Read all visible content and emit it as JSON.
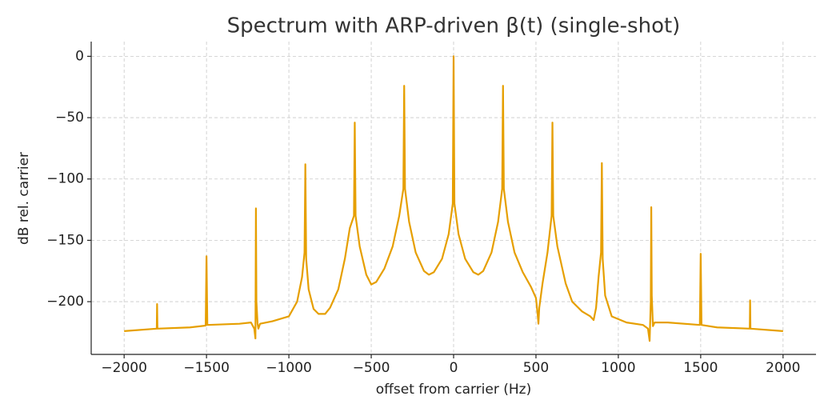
{
  "chart_data": {
    "type": "line",
    "title": "Spectrum with ARP-driven β(t) (single-shot)",
    "xlabel": "offset from carrier (Hz)",
    "ylabel": "dB rel. carrier",
    "color": "#e69f00",
    "grid": true,
    "xlim": [
      -2200,
      2200
    ],
    "ylim": [
      -243,
      12
    ],
    "xticks": [
      {
        "value": -2000,
        "label": "−2000"
      },
      {
        "value": -1500,
        "label": "−1500"
      },
      {
        "value": -1000,
        "label": "−1000"
      },
      {
        "value": -500,
        "label": "−500"
      },
      0,
      500,
      1000,
      1500,
      2000
    ],
    "yticks": [
      0,
      {
        "value": -50,
        "label": "−50"
      },
      {
        "value": -100,
        "label": "−100"
      },
      {
        "value": -150,
        "label": "−150"
      },
      {
        "value": -200,
        "label": "−200"
      }
    ],
    "x": [
      -2000,
      -1802,
      -1800,
      -1798,
      -1600,
      -1505,
      -1500,
      -1495,
      -1300,
      -1230,
      -1210,
      -1203,
      -1200,
      -1197,
      -1190,
      -1185,
      -1175,
      -1100,
      -1000,
      -950,
      -920,
      -905,
      -900,
      -895,
      -880,
      -850,
      -820,
      -780,
      -750,
      -700,
      -660,
      -630,
      -605,
      -600,
      -595,
      -570,
      -530,
      -500,
      -470,
      -420,
      -370,
      -330,
      -305,
      -300,
      -295,
      -270,
      -230,
      -180,
      -150,
      -120,
      -70,
      -30,
      -5,
      0,
      5,
      30,
      70,
      120,
      150,
      180,
      230,
      270,
      295,
      300,
      305,
      330,
      370,
      420,
      470,
      500,
      510,
      515,
      520,
      540,
      570,
      595,
      600,
      605,
      630,
      680,
      720,
      780,
      830,
      850,
      865,
      880,
      895,
      900,
      905,
      920,
      960,
      1050,
      1150,
      1180,
      1190,
      1197,
      1200,
      1203,
      1210,
      1220,
      1300,
      1495,
      1500,
      1505,
      1600,
      1798,
      1800,
      1802,
      2000
    ],
    "values": [
      -224,
      -222,
      -202,
      -222,
      -221,
      -219.5,
      -163,
      -219,
      -218,
      -217,
      -222,
      -230,
      -124,
      -200,
      -218,
      -222,
      -218,
      -216,
      -212,
      -200,
      -180,
      -160,
      -88,
      -165,
      -190,
      -206,
      -210,
      -210,
      -205,
      -190,
      -165,
      -140,
      -130,
      -54,
      -130,
      -155,
      -178,
      -186,
      -184,
      -173,
      -155,
      -130,
      -108,
      -24,
      -108,
      -135,
      -160,
      -175,
      -178,
      -176,
      -165,
      -145,
      -120,
      0,
      -120,
      -145,
      -165,
      -176,
      -178,
      -175,
      -160,
      -135,
      -108,
      -24,
      -108,
      -135,
      -160,
      -176,
      -188,
      -197,
      -210,
      -218,
      -205,
      -185,
      -160,
      -130,
      -54,
      -130,
      -155,
      -185,
      -200,
      -208,
      -212,
      -215,
      -205,
      -180,
      -160,
      -87,
      -165,
      -195,
      -212,
      -217,
      -219,
      -222,
      -232,
      -200,
      -123,
      -195,
      -220,
      -217,
      -217,
      -219,
      -161,
      -219,
      -221,
      -222,
      -199,
      -222,
      -224
    ]
  }
}
